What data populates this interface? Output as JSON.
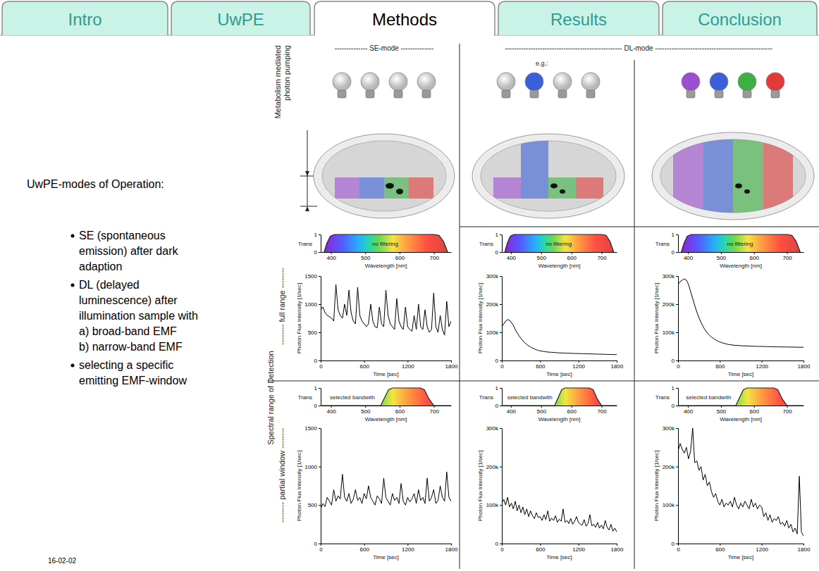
{
  "tabs": [
    {
      "label": "Intro",
      "selected": false
    },
    {
      "label": "UwPE",
      "selected": false
    },
    {
      "label": "Methods",
      "selected": true
    },
    {
      "label": "Results",
      "selected": false
    },
    {
      "label": "Conclusion",
      "selected": false
    }
  ],
  "intro": {
    "heading": "UwPE-modes of Operation:",
    "items": [
      {
        "text": "SE (spontaneous emission) after dark adaption"
      },
      {
        "text": "DL (delayed luminescence) after illumination sample with",
        "sub": [
          "a) broad-band EMF",
          "b) narrow-band EMF"
        ]
      },
      {
        "text": "selecting a specific emitting EMF-window"
      }
    ]
  },
  "date": "16-02-02",
  "figure": {
    "pumping_label": "Metabolism mediated photon pumping",
    "columns": [
      "-------------- SE-mode --------------",
      "-------------------------------------------------- DL-mode --------------------------------------------------"
    ],
    "example_label": "e.g.:",
    "detection_label": "Spectral range of Detection",
    "rows": [
      "-------- full range --------",
      "-------- partial window --------"
    ]
  },
  "chart_data": [
    {
      "type": "area",
      "x": [
        380,
        388,
        398,
        410,
        700,
        715,
        728,
        740
      ],
      "values": [
        0,
        0.5,
        0.9,
        1,
        1,
        0.95,
        0.6,
        0
      ],
      "color": "#222222",
      "xlim": [
        370,
        750
      ],
      "ylim": [
        0,
        1
      ],
      "xticks": [
        400,
        500,
        600,
        700
      ],
      "yticks": [
        0,
        1
      ],
      "x_label": "Wavelength [nm]",
      "y_label": "Trans",
      "annotation": "no filtering"
    },
    {
      "type": "line",
      "color": "#000000",
      "x": [
        0,
        30,
        60,
        90,
        120,
        150,
        180,
        210,
        240,
        270,
        300,
        330,
        360,
        390,
        420,
        450,
        480,
        510,
        540,
        570,
        600,
        630,
        660,
        690,
        720,
        750,
        780,
        810,
        840,
        870,
        900,
        930,
        960,
        990,
        1020,
        1050,
        1080,
        1110,
        1140,
        1170,
        1200,
        1230,
        1260,
        1290,
        1320,
        1350,
        1380,
        1410,
        1440,
        1470,
        1500,
        1530,
        1560,
        1590,
        1620,
        1650,
        1680,
        1710,
        1740,
        1770,
        1800
      ],
      "values": [
        900,
        950,
        850,
        800,
        780,
        750,
        700,
        1350,
        900,
        800,
        750,
        1000,
        800,
        1250,
        850,
        700,
        650,
        1300,
        800,
        700,
        650,
        600,
        650,
        1000,
        700,
        600,
        580,
        950,
        650,
        600,
        1250,
        800,
        650,
        600,
        550,
        1100,
        700,
        600,
        550,
        950,
        600,
        550,
        520,
        800,
        550,
        1000,
        600,
        550,
        900,
        600,
        500,
        550,
        1200,
        600,
        500,
        800,
        550,
        450,
        1050,
        600,
        700
      ],
      "xlim": [
        0,
        1800
      ],
      "ylim": [
        0,
        1500
      ],
      "xticks": [
        0,
        600,
        1200,
        1800
      ],
      "yticks": [
        0,
        500,
        1000,
        1500
      ],
      "x_label": "Time [sec]",
      "y_label": "Photon Flux Intensity [1/sec]"
    },
    {
      "type": "area",
      "x": [
        380,
        388,
        398,
        410,
        700,
        715,
        728,
        740
      ],
      "values": [
        0,
        0.5,
        0.9,
        1,
        1,
        0.95,
        0.6,
        0
      ],
      "color": "#222222",
      "xlim": [
        370,
        750
      ],
      "ylim": [
        0,
        1
      ],
      "xticks": [
        400,
        500,
        600,
        700
      ],
      "yticks": [
        0,
        1
      ],
      "x_label": "Wavelength [nm]",
      "y_label": "Trans",
      "annotation": "no filtering"
    },
    {
      "type": "line",
      "color": "#000000",
      "x": [
        0,
        30,
        60,
        90,
        120,
        150,
        180,
        210,
        240,
        270,
        300,
        330,
        360,
        390,
        420,
        450,
        480,
        510,
        540,
        570,
        600,
        630,
        660,
        690,
        720,
        750,
        780,
        810,
        840,
        870,
        900,
        930,
        960,
        990,
        1020,
        1050,
        1080,
        1110,
        1140,
        1170,
        1200,
        1230,
        1260,
        1290,
        1320,
        1350,
        1380,
        1410,
        1440,
        1470,
        1500,
        1530,
        1560,
        1590,
        1620,
        1650,
        1680,
        1710,
        1740,
        1770,
        1800
      ],
      "values": [
        120000,
        130000,
        140000,
        145000,
        143000,
        135000,
        125000,
        110000,
        98000,
        88000,
        78000,
        70000,
        63000,
        57000,
        52000,
        48000,
        44000,
        41000,
        38000,
        36000,
        34000,
        33000,
        32000,
        31000,
        30000,
        29500,
        29000,
        28500,
        28000,
        27500,
        27000,
        26800,
        26500,
        26200,
        26000,
        25800,
        25500,
        25300,
        25000,
        24800,
        24600,
        24400,
        24200,
        24000,
        23800,
        23600,
        23400,
        23200,
        23000,
        22800,
        22600,
        22400,
        22200,
        22000,
        21800,
        21600,
        21400,
        21200,
        21000,
        20800,
        21500
      ],
      "xlim": [
        0,
        1800
      ],
      "ylim": [
        0,
        300000
      ],
      "xticks": [
        0,
        600,
        1200,
        1800
      ],
      "yticks": [
        0,
        {
          "value": 100000,
          "label": "100k"
        },
        {
          "value": 200000,
          "label": "200k"
        },
        {
          "value": 300000,
          "label": "300k"
        }
      ],
      "x_label": "Time [sec]",
      "y_label": "Photon Flux Intensity [1/sec]"
    },
    {
      "type": "area",
      "x": [
        380,
        388,
        398,
        410,
        700,
        715,
        728,
        740
      ],
      "values": [
        0,
        0.5,
        0.9,
        1,
        1,
        0.95,
        0.6,
        0
      ],
      "color": "#222222",
      "xlim": [
        370,
        750
      ],
      "ylim": [
        0,
        1
      ],
      "xticks": [
        400,
        500,
        600,
        700
      ],
      "yticks": [
        0,
        1
      ],
      "x_label": "Wavelength [nm]",
      "y_label": "Trans",
      "annotation": "no filtering"
    },
    {
      "type": "line",
      "color": "#000000",
      "x": [
        0,
        30,
        60,
        90,
        120,
        150,
        180,
        210,
        240,
        270,
        300,
        330,
        360,
        390,
        420,
        450,
        480,
        510,
        540,
        570,
        600,
        630,
        660,
        690,
        720,
        750,
        780,
        810,
        840,
        870,
        900,
        930,
        960,
        990,
        1020,
        1050,
        1080,
        1110,
        1140,
        1170,
        1200,
        1230,
        1260,
        1290,
        1320,
        1350,
        1380,
        1410,
        1440,
        1470,
        1500,
        1530,
        1560,
        1590,
        1620,
        1650,
        1680,
        1710,
        1740,
        1770,
        1800
      ],
      "values": [
        270000,
        280000,
        285000,
        290000,
        285000,
        270000,
        245000,
        220000,
        195000,
        172000,
        152000,
        135000,
        120000,
        108000,
        98000,
        90000,
        83000,
        78000,
        73000,
        69000,
        66000,
        63000,
        61000,
        59000,
        57000,
        56000,
        55000,
        54000,
        53500,
        53000,
        52500,
        52000,
        52000,
        51500,
        51000,
        51000,
        50500,
        50500,
        50000,
        50000,
        50000,
        49500,
        49500,
        49000,
        49000,
        49000,
        48500,
        48500,
        48500,
        48000,
        48000,
        48000,
        48000,
        47500,
        47500,
        47500,
        47500,
        47000,
        47000,
        47000,
        47000
      ],
      "xlim": [
        0,
        1800
      ],
      "ylim": [
        0,
        300000
      ],
      "xticks": [
        0,
        600,
        1200,
        1800
      ],
      "yticks": [
        0,
        {
          "value": 100000,
          "label": "100k"
        },
        {
          "value": 200000,
          "label": "200k"
        },
        {
          "value": 300000,
          "label": "300k"
        }
      ],
      "x_label": "Time [sec]",
      "y_label": "Photon Flux Intensity [1/sec]"
    },
    {
      "type": "area",
      "x": [
        370,
        545,
        555,
        568,
        580,
        660,
        672,
        685,
        700,
        750
      ],
      "values": [
        0,
        0,
        0.4,
        0.9,
        1,
        1,
        0.9,
        0.4,
        0,
        0
      ],
      "color": "#222222",
      "xlim": [
        370,
        750
      ],
      "ylim": [
        0,
        1
      ],
      "xticks": [
        400,
        500,
        600,
        700
      ],
      "yticks": [
        0,
        1
      ],
      "x_label": "Wavelength [nm]",
      "y_label": "Trans",
      "annotation": "selected bandwith"
    },
    {
      "type": "line",
      "color": "#000000",
      "x": [
        0,
        30,
        60,
        90,
        120,
        150,
        180,
        210,
        240,
        270,
        300,
        330,
        360,
        390,
        420,
        450,
        480,
        510,
        540,
        570,
        600,
        630,
        660,
        690,
        720,
        750,
        780,
        810,
        840,
        870,
        900,
        930,
        960,
        990,
        1020,
        1050,
        1080,
        1110,
        1140,
        1170,
        1200,
        1230,
        1260,
        1290,
        1320,
        1350,
        1380,
        1410,
        1440,
        1470,
        1500,
        1530,
        1560,
        1590,
        1620,
        1650,
        1680,
        1710,
        1740,
        1770,
        1800
      ],
      "values": [
        450,
        520,
        480,
        600,
        550,
        500,
        700,
        550,
        620,
        580,
        900,
        600,
        550,
        650,
        520,
        580,
        700,
        560,
        600,
        520,
        650,
        580,
        750,
        600,
        550,
        500,
        620,
        580,
        520,
        850,
        600,
        550,
        500,
        650,
        560,
        600,
        520,
        780,
        550,
        500,
        600,
        540,
        580,
        650,
        520,
        700,
        560,
        600,
        520,
        850,
        550,
        600,
        700,
        520,
        560,
        750,
        600,
        550,
        930,
        600,
        550
      ],
      "xlim": [
        0,
        1800
      ],
      "ylim": [
        0,
        1500
      ],
      "xticks": [
        0,
        600,
        1200,
        1800
      ],
      "yticks": [
        0,
        500,
        1000,
        1500
      ],
      "x_label": "Time [sec]",
      "y_label": "Photon Flux Intensity [1/sec]"
    },
    {
      "type": "area",
      "x": [
        370,
        545,
        555,
        568,
        580,
        660,
        672,
        685,
        700,
        750
      ],
      "values": [
        0,
        0,
        0.4,
        0.9,
        1,
        1,
        0.9,
        0.4,
        0,
        0
      ],
      "color": "#222222",
      "xlim": [
        370,
        750
      ],
      "ylim": [
        0,
        1
      ],
      "xticks": [
        400,
        500,
        600,
        700
      ],
      "yticks": [
        0,
        1
      ],
      "x_label": "Wavelength [nm]",
      "y_label": "Trans",
      "annotation": "selected bandwith"
    },
    {
      "type": "line",
      "color": "#000000",
      "x": [
        0,
        30,
        60,
        90,
        120,
        150,
        180,
        210,
        240,
        270,
        300,
        330,
        360,
        390,
        420,
        450,
        480,
        510,
        540,
        570,
        600,
        630,
        660,
        690,
        720,
        750,
        780,
        810,
        840,
        870,
        900,
        930,
        960,
        990,
        1020,
        1050,
        1080,
        1110,
        1140,
        1170,
        1200,
        1230,
        1260,
        1290,
        1320,
        1350,
        1380,
        1410,
        1440,
        1470,
        1500,
        1530,
        1560,
        1590,
        1620,
        1650,
        1680,
        1710,
        1740,
        1770,
        1800
      ],
      "values": [
        105000,
        115000,
        100000,
        120000,
        95000,
        105000,
        90000,
        110000,
        85000,
        100000,
        80000,
        95000,
        75000,
        90000,
        70000,
        85000,
        72000,
        65000,
        80000,
        68000,
        70000,
        60000,
        75000,
        62000,
        85000,
        58000,
        66000,
        60000,
        72000,
        55000,
        63000,
        58000,
        90000,
        55000,
        60000,
        52000,
        65000,
        50000,
        58000,
        70000,
        55000,
        50000,
        48000,
        62000,
        45000,
        52000,
        75000,
        46000,
        50000,
        42000,
        55000,
        40000,
        48000,
        38000,
        60000,
        42000,
        35000,
        50000,
        32000,
        40000,
        30000
      ],
      "xlim": [
        0,
        1800
      ],
      "ylim": [
        0,
        300000
      ],
      "xticks": [
        0,
        600,
        1200,
        1800
      ],
      "yticks": [
        0,
        {
          "value": 100000,
          "label": "100k"
        },
        {
          "value": 200000,
          "label": "200k"
        },
        {
          "value": 300000,
          "label": "300k"
        }
      ],
      "x_label": "Time [sec]",
      "y_label": "Photon Flux Intensity [1/sec]"
    },
    {
      "type": "area",
      "x": [
        370,
        545,
        555,
        568,
        580,
        660,
        672,
        685,
        700,
        750
      ],
      "values": [
        0,
        0,
        0.4,
        0.9,
        1,
        1,
        0.9,
        0.4,
        0,
        0
      ],
      "color": "#222222",
      "xlim": [
        370,
        750
      ],
      "ylim": [
        0,
        1
      ],
      "xticks": [
        400,
        500,
        600,
        700
      ],
      "yticks": [
        0,
        1
      ],
      "x_label": "Wavelength [nm]",
      "y_label": "Trans",
      "annotation": "selected bandwith"
    },
    {
      "type": "line",
      "color": "#000000",
      "x": [
        0,
        30,
        60,
        90,
        120,
        150,
        180,
        210,
        240,
        270,
        300,
        330,
        360,
        390,
        420,
        450,
        480,
        510,
        540,
        570,
        600,
        630,
        660,
        690,
        720,
        750,
        780,
        810,
        840,
        870,
        900,
        930,
        960,
        990,
        1020,
        1050,
        1080,
        1110,
        1140,
        1170,
        1200,
        1230,
        1260,
        1290,
        1320,
        1350,
        1380,
        1410,
        1440,
        1470,
        1500,
        1530,
        1560,
        1590,
        1620,
        1650,
        1680,
        1710,
        1740,
        1770,
        1800
      ],
      "values": [
        240000,
        260000,
        245000,
        235000,
        250000,
        220000,
        240000,
        300000,
        210000,
        215000,
        190000,
        200000,
        165000,
        180000,
        150000,
        160000,
        135000,
        120000,
        130000,
        110000,
        100000,
        115000,
        95000,
        105000,
        100000,
        110000,
        95000,
        120000,
        100000,
        90000,
        105000,
        95000,
        110000,
        100000,
        90000,
        115000,
        95000,
        105000,
        90000,
        100000,
        95000,
        70000,
        80000,
        60000,
        75000,
        55000,
        65000,
        60000,
        70000,
        50000,
        55000,
        45000,
        60000,
        40000,
        50000,
        30000,
        40000,
        25000,
        175000,
        30000,
        20000
      ],
      "xlim": [
        0,
        1800
      ],
      "ylim": [
        0,
        300000
      ],
      "xticks": [
        0,
        600,
        1200,
        1800
      ],
      "yticks": [
        0,
        {
          "value": 100000,
          "label": "100k"
        },
        {
          "value": 200000,
          "label": "200k"
        },
        {
          "value": 300000,
          "label": "300k"
        }
      ],
      "x_label": "Time [sec]",
      "y_label": "Photon Flux Intensity [1/sec]"
    }
  ]
}
